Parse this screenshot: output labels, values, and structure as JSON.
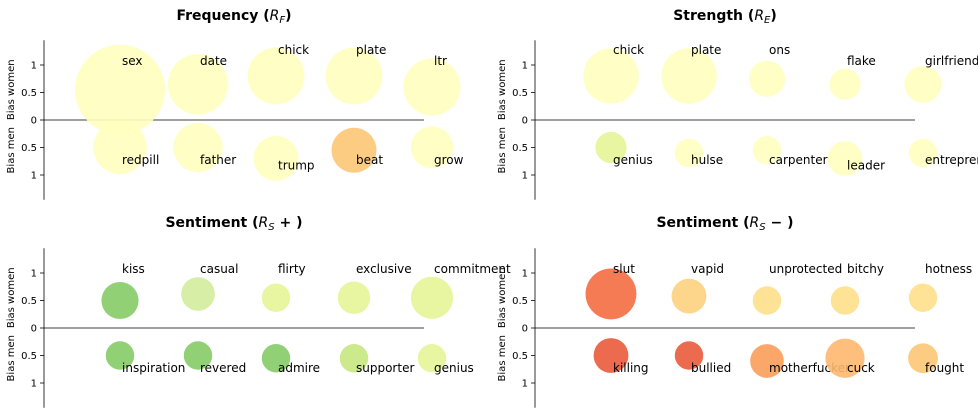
{
  "chart_data": [
    {
      "type": "bubble",
      "title": "Frequency (R_F)",
      "title_main": "Frequency (",
      "title_sym": "R",
      "title_sub": "F",
      "title_tail": ")",
      "ylabel_top": "Bias women",
      "ylabel_bottom": "Bias men",
      "ylim": [
        -1.45,
        1.45
      ],
      "yticks": [
        "1",
        "0.5",
        "0",
        "0.5",
        "1"
      ],
      "women": [
        {
          "word": "sex",
          "bias": 0.55,
          "weight": 1.0,
          "color": "#ffffbf"
        },
        {
          "word": "date",
          "bias": 0.65,
          "weight": 0.45,
          "color": "#ffffbf"
        },
        {
          "word": "chick",
          "bias": 0.8,
          "weight": 0.4,
          "color": "#ffffbf"
        },
        {
          "word": "plate",
          "bias": 0.8,
          "weight": 0.4,
          "color": "#ffffbf"
        },
        {
          "word": "ltr",
          "bias": 0.6,
          "weight": 0.4,
          "color": "#ffffbf"
        }
      ],
      "men": [
        {
          "word": "redpill",
          "bias": 0.5,
          "weight": 0.35,
          "color": "#ffffbf"
        },
        {
          "word": "father",
          "bias": 0.5,
          "weight": 0.3,
          "color": "#ffffbf"
        },
        {
          "word": "trump",
          "bias": 0.7,
          "weight": 0.25,
          "color": "#ffffbf"
        },
        {
          "word": "beat",
          "bias": 0.55,
          "weight": 0.25,
          "color": "#fdc776"
        },
        {
          "word": "grow",
          "bias": 0.5,
          "weight": 0.22,
          "color": "#ffffbf"
        }
      ]
    },
    {
      "type": "bubble",
      "title": "Strength (R_E)",
      "title_main": "Strength (",
      "title_sym": "R",
      "title_sub": "E",
      "title_tail": ")",
      "ylabel_top": "Bias women",
      "ylabel_bottom": "Bias men",
      "ylim": [
        -1.45,
        1.45
      ],
      "yticks": [
        "1",
        "0.5",
        "0",
        "0.5",
        "1"
      ],
      "women": [
        {
          "word": "chick",
          "bias": 0.8,
          "weight": 0.38,
          "color": "#ffffbf"
        },
        {
          "word": "plate",
          "bias": 0.8,
          "weight": 0.38,
          "color": "#ffffbf"
        },
        {
          "word": "ons",
          "bias": 0.75,
          "weight": 0.16,
          "color": "#ffffbf"
        },
        {
          "word": "flake",
          "bias": 0.65,
          "weight": 0.12,
          "color": "#ffffbf"
        },
        {
          "word": "girlfriends",
          "bias": 0.65,
          "weight": 0.17,
          "color": "#ffffbf"
        }
      ],
      "men": [
        {
          "word": "genius",
          "bias": 0.5,
          "weight": 0.12,
          "color": "#e6f598"
        },
        {
          "word": "hulse",
          "bias": 0.6,
          "weight": 0.1,
          "color": "#ffffbf"
        },
        {
          "word": "carpenter",
          "bias": 0.55,
          "weight": 0.1,
          "color": "#ffffbf"
        },
        {
          "word": "leader",
          "bias": 0.7,
          "weight": 0.15,
          "color": "#ffffbf"
        },
        {
          "word": "entrepreneur",
          "bias": 0.6,
          "weight": 0.1,
          "color": "#ffffbf"
        }
      ]
    },
    {
      "type": "bubble",
      "title": "Sentiment (R_S+)",
      "title_main": "Sentiment (",
      "title_sym": "R",
      "title_sub": "S",
      "title_tail": " + )",
      "ylabel_top": "Bias women",
      "ylabel_bottom": "Bias men",
      "ylim": [
        -1.45,
        1.45
      ],
      "yticks": [
        "1",
        "0.5",
        "0",
        "0.5",
        "1"
      ],
      "women": [
        {
          "word": "kiss",
          "bias": 0.5,
          "weight": 0.17,
          "color": "#86cb66"
        },
        {
          "word": "casual",
          "bias": 0.62,
          "weight": 0.14,
          "color": "#d2ec9b"
        },
        {
          "word": "flirty",
          "bias": 0.55,
          "weight": 0.1,
          "color": "#e6f598"
        },
        {
          "word": "exclusive",
          "bias": 0.55,
          "weight": 0.13,
          "color": "#e6f598"
        },
        {
          "word": "commitment",
          "bias": 0.55,
          "weight": 0.22,
          "color": "#e6f598"
        }
      ],
      "men": [
        {
          "word": "inspiration",
          "bias": 0.5,
          "weight": 0.1,
          "color": "#86cb66"
        },
        {
          "word": "revered",
          "bias": 0.5,
          "weight": 0.1,
          "color": "#86cb66"
        },
        {
          "word": "admire",
          "bias": 0.55,
          "weight": 0.1,
          "color": "#86cb66"
        },
        {
          "word": "supporter",
          "bias": 0.55,
          "weight": 0.1,
          "color": "#c7e77f"
        },
        {
          "word": "genius",
          "bias": 0.55,
          "weight": 0.1,
          "color": "#e6f598"
        }
      ]
    },
    {
      "type": "bubble",
      "title": "Sentiment (R_S-)",
      "title_main": "Sentiment (",
      "title_sym": "R",
      "title_sub": "S",
      "title_tail": " − )",
      "ylabel_top": "Bias women",
      "ylabel_bottom": "Bias men",
      "ylim": [
        -1.45,
        1.45
      ],
      "yticks": [
        "1",
        "0.5",
        "0",
        "0.5",
        "1"
      ],
      "women": [
        {
          "word": "slut",
          "bias": 0.62,
          "weight": 0.32,
          "color": "#f46d43"
        },
        {
          "word": "vapid",
          "bias": 0.58,
          "weight": 0.15,
          "color": "#fdd180"
        },
        {
          "word": "unprotected",
          "bias": 0.5,
          "weight": 0.1,
          "color": "#fee08b"
        },
        {
          "word": "bitchy",
          "bias": 0.5,
          "weight": 0.1,
          "color": "#fee08b"
        },
        {
          "word": "hotness",
          "bias": 0.55,
          "weight": 0.1,
          "color": "#fee08b"
        }
      ],
      "men": [
        {
          "word": "killing",
          "bias": 0.5,
          "weight": 0.15,
          "color": "#ea5a3a"
        },
        {
          "word": "bullied",
          "bias": 0.5,
          "weight": 0.1,
          "color": "#ea5a3a"
        },
        {
          "word": "motherfucker",
          "bias": 0.6,
          "weight": 0.14,
          "color": "#fb9d59"
        },
        {
          "word": "cuck",
          "bias": 0.55,
          "weight": 0.19,
          "color": "#fdb86d"
        },
        {
          "word": "fought",
          "bias": 0.55,
          "weight": 0.11,
          "color": "#fdc776"
        }
      ]
    }
  ]
}
